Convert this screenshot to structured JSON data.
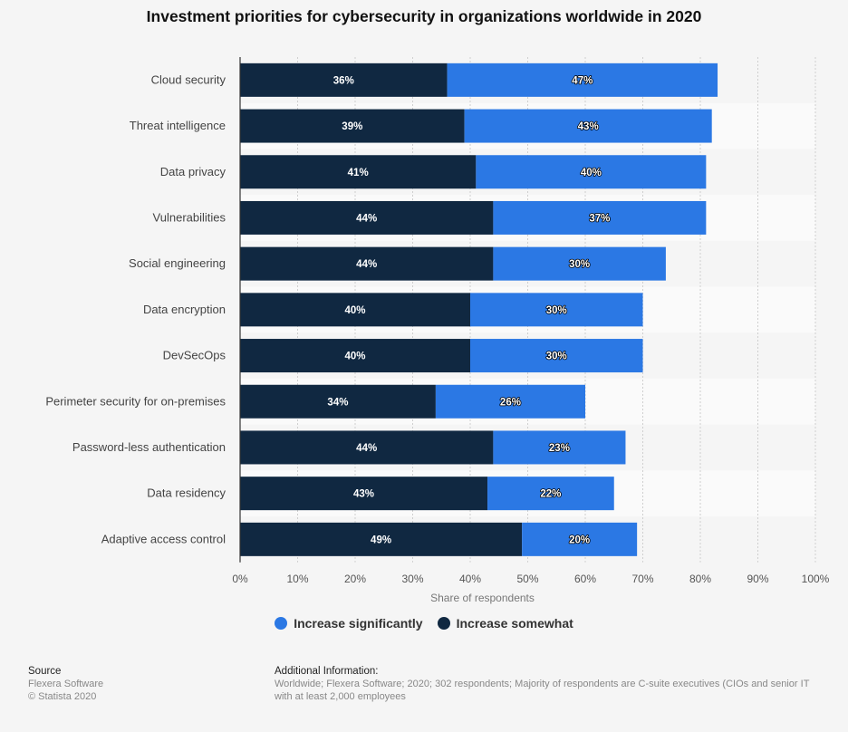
{
  "chart_data": {
    "type": "bar",
    "orientation": "horizontal",
    "stacked": true,
    "title": "Investment priorities for cybersecurity in organizations worldwide in 2020",
    "xlabel": "Share of respondents",
    "ylabel": "",
    "xlim": [
      0,
      100
    ],
    "ticks": [
      "0%",
      "10%",
      "20%",
      "30%",
      "40%",
      "50%",
      "60%",
      "70%",
      "80%",
      "90%",
      "100%"
    ],
    "grid": true,
    "legend_position": "bottom",
    "categories": [
      "Cloud security",
      "Threat intelligence",
      "Data privacy",
      "Vulnerabilities",
      "Social engineering",
      "Data encryption",
      "DevSecOps",
      "Perimeter security for on-premises",
      "Password-less authentication",
      "Data residency",
      "Adaptive access control"
    ],
    "series": [
      {
        "name": "Increase somewhat",
        "color": "#102841",
        "values": [
          36,
          39,
          41,
          44,
          44,
          40,
          40,
          34,
          44,
          43,
          49
        ]
      },
      {
        "name": "Increase significantly",
        "color": "#2b78e4",
        "values": [
          47,
          43,
          40,
          37,
          30,
          30,
          30,
          26,
          23,
          22,
          20
        ]
      }
    ],
    "legend": [
      "Increase significantly",
      "Increase somewhat"
    ]
  },
  "footer": {
    "source_header": "Source",
    "source_line1": "Flexera Software",
    "source_line2": "© Statista 2020",
    "info_header": "Additional Information:",
    "info_line1": "Worldwide; Flexera Software; 2020; 302 respondents; Majority of respondents are C-suite executives (CIOs and senior IT",
    "info_line2": "with at least 2,000 employees"
  }
}
